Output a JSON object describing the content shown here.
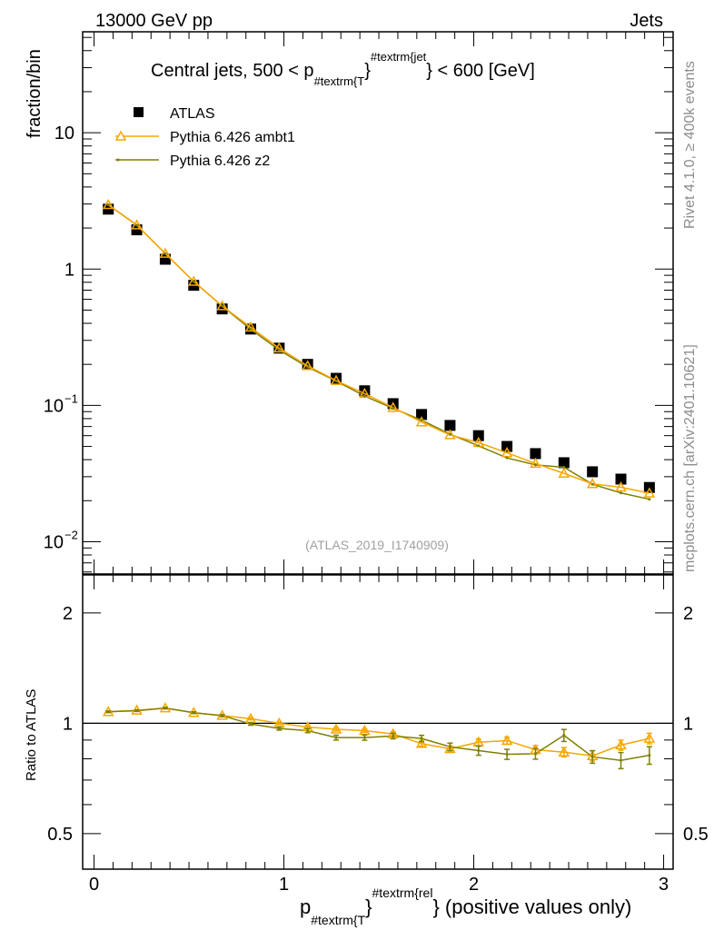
{
  "header": {
    "left": "13000 GeV pp",
    "right": "Jets"
  },
  "side_text": {
    "rivet": "Rivet 4.1.0, ≥ 400k events",
    "mcplots": "mcplots.cern.ch [arXiv:2401.10621]"
  },
  "analysis_id": "(ATLAS_2019_I1740909)",
  "colors": {
    "atlas": "#000000",
    "ambt1": "#f5a700",
    "z2": "#7f8000"
  },
  "chart_data": [
    {
      "type": "scatter",
      "title_parts": {
        "pre": "Central jets, 500 < p",
        "sub": "#textrm{T",
        "mid": "}",
        "sup": "#textrm{jet",
        "post": "} < 600 [GeV]"
      },
      "ylabel": "fraction/bin",
      "yscale": "log",
      "ylim": [
        0.0058,
        55
      ],
      "xlim": [
        -0.06,
        3.05
      ],
      "yticks": [
        {
          "v": 10,
          "label": "10"
        },
        {
          "v": 1,
          "label": "1"
        },
        {
          "v": 0.1,
          "label": "10",
          "exp": "−1"
        },
        {
          "v": 0.01,
          "label": "10",
          "exp": "−2"
        }
      ],
      "x": [
        0.075,
        0.225,
        0.375,
        0.525,
        0.675,
        0.825,
        0.975,
        1.125,
        1.275,
        1.425,
        1.575,
        1.725,
        1.875,
        2.025,
        2.175,
        2.325,
        2.475,
        2.625,
        2.775,
        2.925
      ],
      "legend": [
        "ATLAS",
        "Pythia 6.426 ambt1",
        "Pythia 6.426 z2"
      ],
      "legend_position": "top-left",
      "series": [
        {
          "name": "ATLAS",
          "values": [
            2.75,
            1.94,
            1.18,
            0.76,
            0.51,
            0.363,
            0.263,
            0.2,
            0.158,
            0.128,
            0.103,
            0.0858,
            0.0713,
            0.06,
            0.05,
            0.0443,
            0.038,
            0.0326,
            0.0288,
            0.025
          ]
        },
        {
          "name": "Pythia 6.426 ambt1",
          "values": [
            2.96,
            2.1,
            1.3,
            0.81,
            0.536,
            0.374,
            0.263,
            0.195,
            0.152,
            0.122,
            0.0963,
            0.0755,
            0.0607,
            0.0533,
            0.0449,
            0.0375,
            0.0317,
            0.0266,
            0.0251,
            0.0227
          ]
        },
        {
          "name": "Pythia 6.426 z2",
          "values": [
            2.96,
            2.1,
            1.3,
            0.81,
            0.535,
            0.362,
            0.255,
            0.191,
            0.151,
            0.117,
            0.095,
            0.078,
            0.0615,
            0.0505,
            0.0412,
            0.0366,
            0.0352,
            0.0264,
            0.0228,
            0.0205
          ]
        }
      ]
    },
    {
      "type": "line",
      "ylabel": "Ratio to ATLAS",
      "xlabel_parts": {
        "pre": "p",
        "sub": "#textrm{T",
        "mid": "}",
        "sup": "#textrm{rel",
        "post": "} (positive values only)"
      },
      "yscale": "log",
      "ylim": [
        0.4,
        2.54
      ],
      "xlim": [
        -0.06,
        3.05
      ],
      "yticks": [
        {
          "v": 2,
          "label": "2"
        },
        {
          "v": 1,
          "label": "1"
        },
        {
          "v": 0.5,
          "label": "0.5"
        }
      ],
      "xticks": [
        {
          "v": 0,
          "label": "0"
        },
        {
          "v": 1,
          "label": "1"
        },
        {
          "v": 2,
          "label": "2"
        },
        {
          "v": 3,
          "label": "3"
        }
      ],
      "series": [
        {
          "name": "Pythia 6.426 ambt1",
          "values": [
            1.075,
            1.085,
            1.1,
            1.069,
            1.05,
            1.029,
            1.0,
            0.977,
            0.963,
            0.955,
            0.935,
            0.88,
            0.852,
            0.888,
            0.897,
            0.847,
            0.834,
            0.815,
            0.872,
            0.909
          ],
          "errors": [
            0.005,
            0.005,
            0.005,
            0.005,
            0.006,
            0.007,
            0.008,
            0.009,
            0.01,
            0.01,
            0.012,
            0.014,
            0.016,
            0.018,
            0.02,
            0.022,
            0.024,
            0.026,
            0.028,
            0.03
          ]
        },
        {
          "name": "Pythia 6.426 z2",
          "values": [
            1.075,
            1.082,
            1.1,
            1.069,
            1.049,
            0.996,
            0.968,
            0.955,
            0.914,
            0.914,
            0.923,
            0.909,
            0.863,
            0.842,
            0.823,
            0.826,
            0.927,
            0.81,
            0.792,
            0.818
          ],
          "errors": [
            0.005,
            0.005,
            0.005,
            0.006,
            0.007,
            0.008,
            0.01,
            0.012,
            0.014,
            0.015,
            0.016,
            0.018,
            0.02,
            0.024,
            0.026,
            0.028,
            0.035,
            0.032,
            0.04,
            0.045
          ]
        }
      ]
    }
  ]
}
